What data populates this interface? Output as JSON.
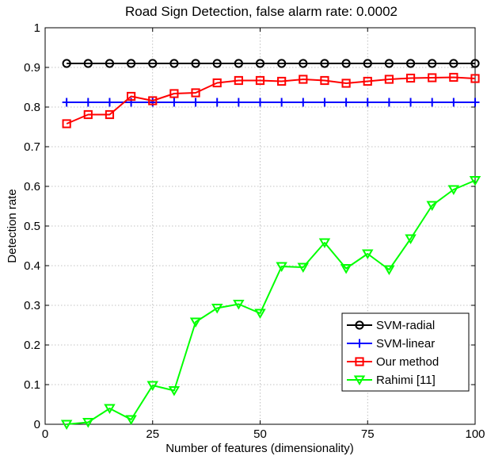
{
  "chart_data": {
    "type": "line",
    "title": "Road Sign Detection, false alarm rate: 0.0002",
    "xlabel": "Number of features (dimensionality)",
    "ylabel": "Detection rate",
    "xlim": [
      0,
      100
    ],
    "ylim": [
      0,
      1
    ],
    "xticks": [
      0,
      25,
      50,
      75,
      100
    ],
    "yticks": [
      0,
      0.1,
      0.2,
      0.3,
      0.4,
      0.5,
      0.6,
      0.7,
      0.8,
      0.9,
      1
    ],
    "ytick_labels": [
      "0",
      "0.1",
      "0.2",
      "0.3",
      "0.4",
      "0.5",
      "0.6",
      "0.7",
      "0.8",
      "0.9",
      "1"
    ],
    "grid": true,
    "legend_position": "bottom-right",
    "x": [
      5,
      10,
      15,
      20,
      25,
      30,
      35,
      40,
      45,
      50,
      55,
      60,
      65,
      70,
      75,
      80,
      85,
      90,
      95,
      100
    ],
    "series": [
      {
        "name": "SVM-radial",
        "color": "#000000",
        "marker": "circle",
        "values": [
          0.91,
          0.91,
          0.91,
          0.91,
          0.91,
          0.91,
          0.91,
          0.91,
          0.91,
          0.91,
          0.91,
          0.91,
          0.91,
          0.91,
          0.91,
          0.91,
          0.91,
          0.91,
          0.91,
          0.91
        ]
      },
      {
        "name": "SVM-linear",
        "color": "#0000ff",
        "marker": "plus",
        "values": [
          0.812,
          0.812,
          0.812,
          0.812,
          0.812,
          0.812,
          0.812,
          0.812,
          0.812,
          0.812,
          0.812,
          0.812,
          0.812,
          0.812,
          0.812,
          0.812,
          0.812,
          0.812,
          0.812,
          0.812
        ]
      },
      {
        "name": "Our method",
        "color": "#ff0000",
        "marker": "square",
        "values": [
          0.758,
          0.781,
          0.781,
          0.827,
          0.816,
          0.834,
          0.836,
          0.861,
          0.867,
          0.867,
          0.865,
          0.87,
          0.867,
          0.86,
          0.865,
          0.87,
          0.873,
          0.874,
          0.875,
          0.872
        ]
      },
      {
        "name": "Rahimi [11]",
        "color": "#00ff00",
        "marker": "triangle-down",
        "values": [
          0.0,
          0.005,
          0.04,
          0.012,
          0.098,
          0.085,
          0.258,
          0.293,
          0.303,
          0.28,
          0.398,
          0.396,
          0.458,
          0.393,
          0.43,
          0.39,
          0.468,
          0.552,
          0.592,
          0.615
        ]
      }
    ]
  }
}
